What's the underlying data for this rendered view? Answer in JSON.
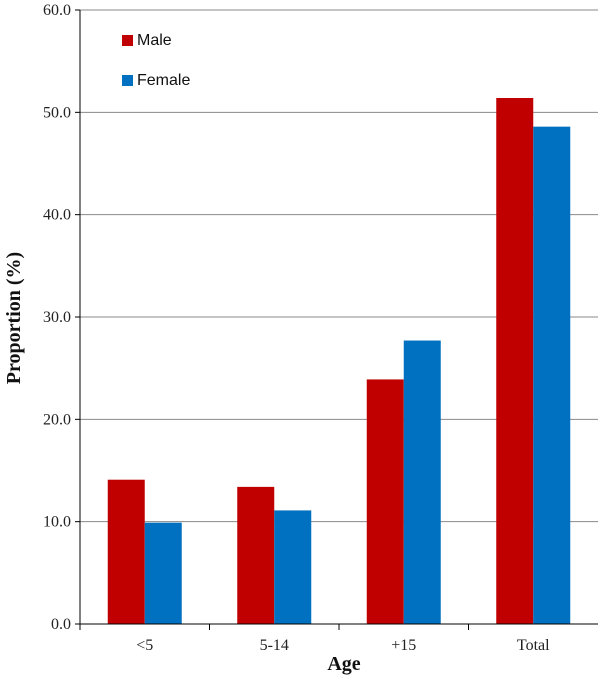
{
  "chart_data": {
    "type": "bar",
    "title": "",
    "xlabel": "Age",
    "ylabel": "Proportion (%)",
    "categories": [
      "<5",
      "5-14",
      "+15",
      "Total"
    ],
    "ylim": [
      0,
      60
    ],
    "yticks": [
      "0.0",
      "10.0",
      "20.0",
      "30.0",
      "40.0",
      "50.0",
      "60.0"
    ],
    "ytick_values": [
      0,
      10,
      20,
      30,
      40,
      50,
      60
    ],
    "grid": true,
    "legend_position": "top-left",
    "series": [
      {
        "name": "Male",
        "color": "#C00000",
        "values": [
          14.1,
          13.4,
          23.9,
          51.4
        ]
      },
      {
        "name": "Female",
        "color": "#0070C0",
        "values": [
          9.9,
          11.1,
          27.7,
          48.6
        ]
      }
    ]
  }
}
